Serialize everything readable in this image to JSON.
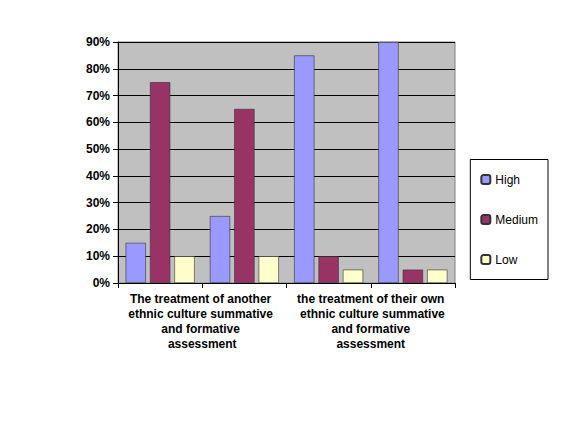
{
  "chart_data": {
    "type": "bar",
    "categories": [
      "The treatment of another ethnic culture summative and formative assessment",
      null,
      "the treatment of their own ethnic culture summative and formative assessment",
      null
    ],
    "series": [
      {
        "name": "High",
        "color": "#9999FF",
        "values": [
          15,
          25,
          85,
          90
        ]
      },
      {
        "name": "Medium",
        "color": "#993366",
        "values": [
          75,
          65,
          10,
          5
        ]
      },
      {
        "name": "Low",
        "color": "#FFFFCC",
        "values": [
          10,
          10,
          5,
          5
        ]
      }
    ],
    "ylim": [
      0,
      90
    ],
    "yticks": [
      {
        "value": 0,
        "label": "0%"
      },
      {
        "value": 10,
        "label": "10%"
      },
      {
        "value": 20,
        "label": "20%"
      },
      {
        "value": 30,
        "label": "30%"
      },
      {
        "value": 40,
        "label": "40%"
      },
      {
        "value": 50,
        "label": "50%"
      },
      {
        "value": 60,
        "label": "60%"
      },
      {
        "value": 70,
        "label": "70%"
      },
      {
        "value": 80,
        "label": "80%"
      },
      {
        "value": 90,
        "label": "90%"
      }
    ],
    "grid": true,
    "legend": "right"
  }
}
